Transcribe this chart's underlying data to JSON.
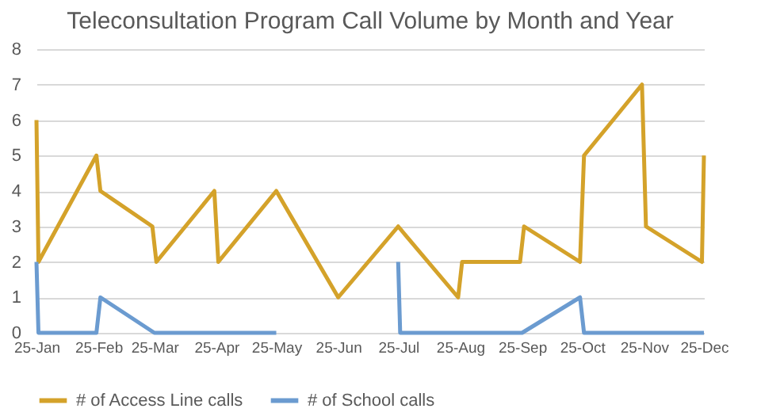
{
  "chart_data": {
    "type": "line",
    "title": "Teleconsultation Program Call Volume by Month and Year",
    "x": [
      "2025-01-01",
      "2025-01-02",
      "2025-01-31",
      "2025-02-02",
      "2025-02-28",
      "2025-03-02",
      "2025-03-31",
      "2025-04-02",
      "2025-05-01",
      "2025-06-01",
      "2025-07-01",
      "2025-07-31",
      "2025-08-02",
      "2025-08-31",
      "2025-09-02",
      "2025-09-30",
      "2025-10-02",
      "2025-10-31",
      "2025-11-02",
      "2025-11-30",
      "2025-12-01"
    ],
    "series": [
      {
        "name": "# of Access Line calls",
        "color": "#d4a22a",
        "values": [
          6,
          2,
          5,
          4,
          3,
          2,
          4,
          2,
          4,
          1,
          3,
          1,
          2,
          2,
          3,
          2,
          5,
          7,
          3,
          2,
          5
        ]
      },
      {
        "name": "# of School calls",
        "color": "#6b9bd0",
        "x": [
          "2025-01-01",
          "2025-01-02",
          "2025-01-31",
          "2025-02-02",
          "2025-03-01",
          "2025-05-01",
          "2025-06-01",
          "2025-07-01",
          "2025-07-02",
          "2025-09-01",
          "2025-09-30",
          "2025-10-02",
          "2025-12-01"
        ],
        "values": [
          2,
          0,
          0,
          1,
          0,
          0,
          null,
          2,
          0,
          0,
          1,
          0,
          0
        ]
      }
    ],
    "xlim": [
      "2025-01-01",
      "2025-12-01"
    ],
    "xticks": [
      {
        "value": "2025-01-01",
        "label": "25-Jan"
      },
      {
        "value": "2025-02-01",
        "label": "25-Feb"
      },
      {
        "value": "2025-03-01",
        "label": "25-Mar"
      },
      {
        "value": "2025-04-01",
        "label": "25-Apr"
      },
      {
        "value": "2025-05-01",
        "label": "25-May"
      },
      {
        "value": "2025-06-01",
        "label": "25-Jun"
      },
      {
        "value": "2025-07-01",
        "label": "25-Jul"
      },
      {
        "value": "2025-08-01",
        "label": "25-Aug"
      },
      {
        "value": "2025-09-01",
        "label": "25-Sep"
      },
      {
        "value": "2025-10-01",
        "label": "25-Oct"
      },
      {
        "value": "2025-11-01",
        "label": "25-Nov"
      },
      {
        "value": "2025-12-01",
        "label": "25-Dec"
      }
    ],
    "ylim": [
      0,
      8
    ],
    "yticks": [
      0,
      1,
      2,
      3,
      4,
      5,
      6,
      7,
      8
    ],
    "grid": "y",
    "legend": "bottom",
    "marker": "none",
    "line_style": "solid"
  }
}
